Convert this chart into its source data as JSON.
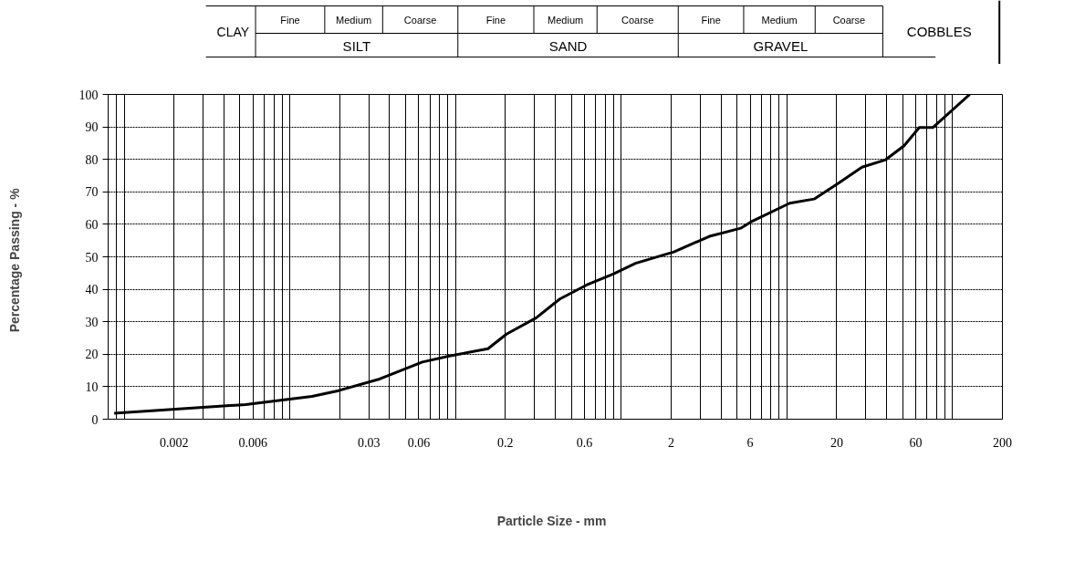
{
  "chart_data": {
    "type": "line",
    "xlabel": "Particle Size  -  mm",
    "ylabel": "Percentage Passing  -  %",
    "annotations": [
      "CLAY",
      "Fine",
      "Medium",
      "Coarse",
      "SILT",
      "Fine",
      "Medium",
      "Coarse",
      "SAND",
      "Fine",
      "Medium",
      "Coarse",
      "GRAVEL",
      "COBBLES"
    ],
    "log": "x",
    "xlim": [
      0.0008,
      200
    ],
    "xticks": [
      0.002,
      0.006,
      0.03,
      0.06,
      0.2,
      0.6,
      2,
      6,
      20,
      60,
      200
    ],
    "ylim": [
      0,
      100
    ],
    "yticks": [
      0,
      10,
      20,
      30,
      40,
      50,
      60,
      70,
      80,
      90,
      100
    ],
    "grid": true,
    "marker": "none",
    "line_style": "solid",
    "series": [
      {
        "color": "#000000",
        "x": [
          0.00087,
          0.0054,
          0.0136,
          0.0197,
          0.034,
          0.063,
          0.093,
          0.157,
          0.203,
          0.307,
          0.426,
          0.617,
          0.895,
          1.22,
          2.08,
          3.41,
          5.26,
          6.2,
          10.4,
          14.6,
          20.5,
          28.4,
          39.5,
          51,
          63,
          76,
          127
        ],
        "values": [
          1.8,
          4.5,
          7,
          8.8,
          12.2,
          17.6,
          19.5,
          21.7,
          26.2,
          31.2,
          37,
          41.3,
          44.7,
          48,
          51.5,
          56.3,
          58.8,
          61,
          66.5,
          67.8,
          72.7,
          77.6,
          79.9,
          84.2,
          89.8,
          89.8,
          100
        ]
      }
    ]
  }
}
